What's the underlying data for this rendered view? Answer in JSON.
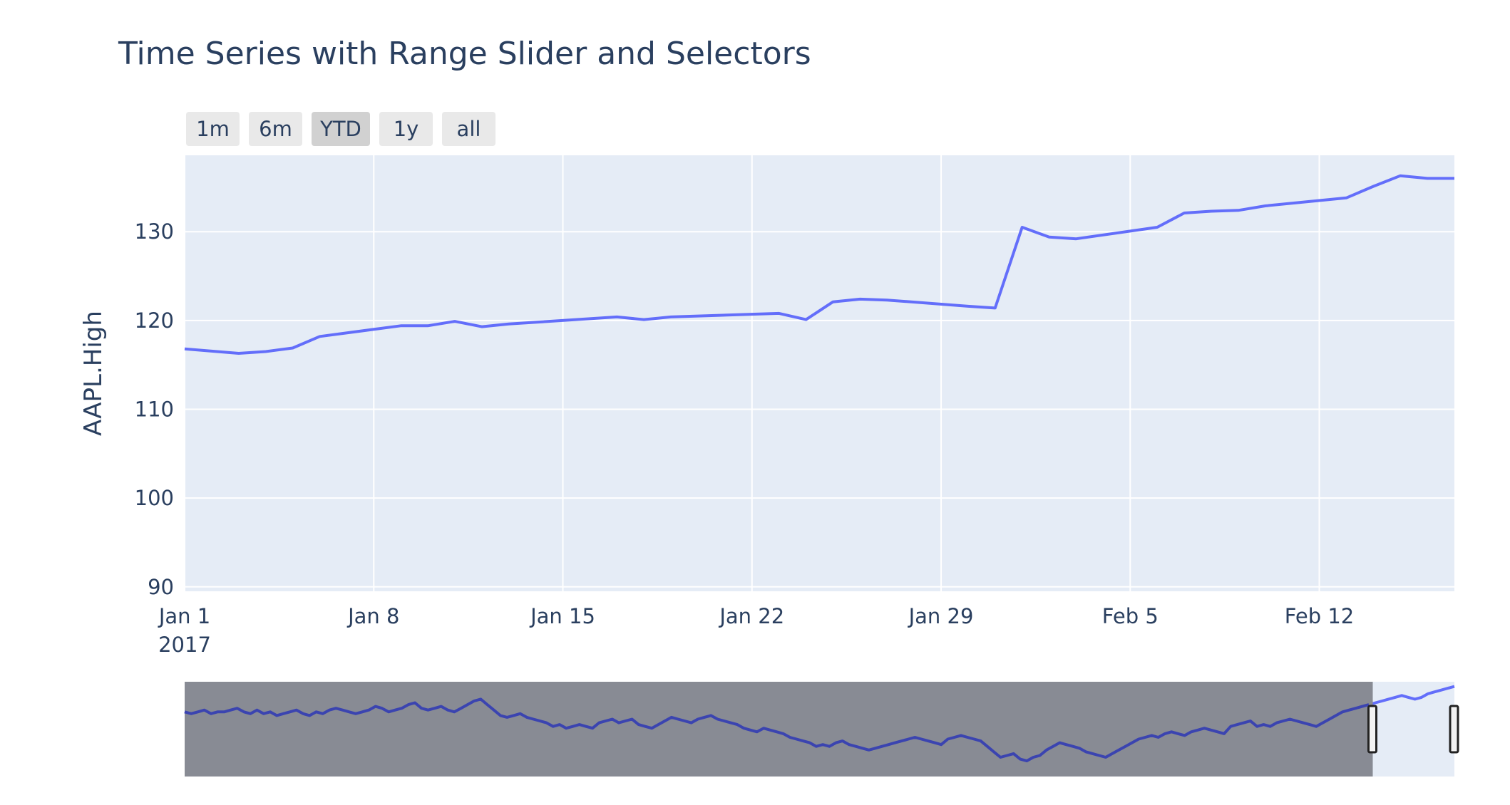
{
  "chart_data": {
    "type": "line",
    "title": "Time Series with Range Slider and Selectors",
    "ylabel": "AAPL.High",
    "xlabel": "",
    "x_range": [
      "2017-01-01",
      "2017-02-17"
    ],
    "y_range": [
      89.5,
      138.6
    ],
    "y_ticks": [
      90,
      100,
      110,
      120,
      130
    ],
    "x_ticks": [
      {
        "date": "2017-01-01",
        "label": "Jan 1",
        "sublabel": "2017"
      },
      {
        "date": "2017-01-08",
        "label": "Jan 8"
      },
      {
        "date": "2017-01-15",
        "label": "Jan 15"
      },
      {
        "date": "2017-01-22",
        "label": "Jan 22"
      },
      {
        "date": "2017-01-29",
        "label": "Jan 29"
      },
      {
        "date": "2017-02-05",
        "label": "Feb 5"
      },
      {
        "date": "2017-02-12",
        "label": "Feb 12"
      }
    ],
    "grid": true,
    "colors": {
      "line": "#636efa",
      "plot_bg": "#e5ecf6",
      "grid": "#ffffff",
      "text": "#2a3f5f",
      "button_bg": "#e9e9e9",
      "button_active_bg": "#d1d1d1",
      "slider_mask": "#888b94",
      "slider_line": "#3b44b0"
    },
    "range_buttons": [
      "1m",
      "6m",
      "YTD",
      "1y",
      "all"
    ],
    "active_button": "YTD",
    "slider_full_range": [
      "2015-02-17",
      "2017-02-17"
    ],
    "slider_y_range": [
      89,
      138
    ],
    "slider_window": [
      "2017-01-01",
      "2017-02-17"
    ],
    "series": [
      {
        "x": [
          "2017-01-01",
          "2017-01-03",
          "2017-01-04",
          "2017-01-05",
          "2017-01-06",
          "2017-01-09",
          "2017-01-10",
          "2017-01-11",
          "2017-01-12",
          "2017-01-13",
          "2017-01-17",
          "2017-01-18",
          "2017-01-19",
          "2017-01-20",
          "2017-01-23",
          "2017-01-24",
          "2017-01-25",
          "2017-01-26",
          "2017-01-27",
          "2017-01-30",
          "2017-01-31",
          "2017-02-01",
          "2017-02-02",
          "2017-02-03",
          "2017-02-06",
          "2017-02-07",
          "2017-02-08",
          "2017-02-09",
          "2017-02-10",
          "2017-02-13",
          "2017-02-14",
          "2017-02-15",
          "2017-02-16",
          "2017-02-17"
        ],
        "y": [
          116.8,
          116.3,
          116.5,
          116.9,
          118.2,
          119.4,
          119.4,
          119.9,
          119.3,
          119.6,
          120.4,
          120.1,
          120.4,
          120.5,
          120.8,
          120.1,
          122.1,
          122.4,
          122.3,
          121.6,
          121.4,
          130.5,
          129.4,
          129.2,
          130.5,
          132.1,
          132.3,
          132.4,
          132.9,
          133.8,
          135.1,
          136.3,
          136.0,
          136.0
        ]
      }
    ],
    "slider_series": [
      123,
      122,
      123,
      124,
      122,
      123,
      123,
      124,
      125,
      123,
      122,
      124,
      122,
      123,
      121,
      122,
      123,
      124,
      122,
      121,
      123,
      122,
      124,
      125,
      124,
      123,
      122,
      123,
      124,
      126,
      125,
      123,
      124,
      125,
      127,
      128,
      125,
      124,
      125,
      126,
      124,
      123,
      125,
      127,
      129,
      130,
      127,
      124,
      121,
      120,
      121,
      122,
      120,
      119,
      118,
      117,
      115,
      116,
      114,
      115,
      116,
      115,
      114,
      117,
      118,
      119,
      117,
      118,
      119,
      116,
      115,
      114,
      116,
      118,
      120,
      119,
      118,
      117,
      119,
      120,
      121,
      119,
      118,
      117,
      116,
      114,
      113,
      112,
      114,
      113,
      112,
      111,
      109,
      108,
      107,
      106,
      104,
      105,
      104,
      106,
      107,
      105,
      104,
      103,
      102,
      103,
      104,
      105,
      106,
      107,
      108,
      109,
      108,
      107,
      106,
      105,
      108,
      109,
      110,
      109,
      108,
      107,
      104,
      101,
      98,
      99,
      100,
      97,
      96,
      98,
      99,
      102,
      104,
      106,
      105,
      104,
      103,
      101,
      100,
      99,
      98,
      100,
      102,
      104,
      106,
      108,
      109,
      110,
      109,
      111,
      112,
      111,
      110,
      112,
      113,
      114,
      113,
      112,
      111,
      115,
      116,
      117,
      118,
      115,
      116,
      115,
      117,
      118,
      119,
      118,
      117,
      116,
      115,
      117,
      119,
      121,
      123,
      124,
      125,
      126,
      127,
      128,
      129,
      130,
      131,
      132,
      131,
      130,
      131,
      133,
      134,
      135,
      136,
      137
    ]
  }
}
